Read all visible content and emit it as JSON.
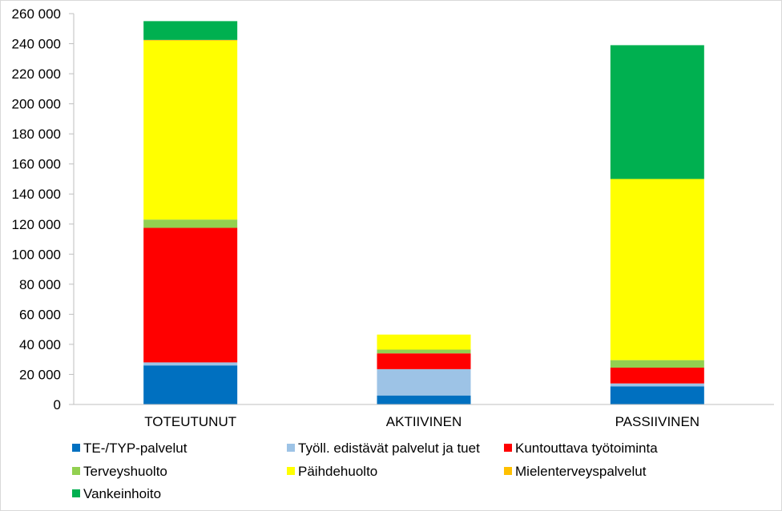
{
  "chart_data": {
    "type": "bar",
    "stacked": true,
    "categories": [
      "TOTEUTUNUT",
      "AKTIIVINEN",
      "PASSIIVINEN"
    ],
    "series": [
      {
        "name": "TE-/TYP-palvelut",
        "color": "#0070C0",
        "values": [
          26000,
          6000,
          12000
        ]
      },
      {
        "name": "Työll. edistävät palvelut ja tuet",
        "color": "#9DC3E6",
        "values": [
          2000,
          17500,
          2000
        ]
      },
      {
        "name": "Kuntouttava työtoiminta",
        "color": "#FF0000",
        "values": [
          89500,
          10500,
          10500
        ]
      },
      {
        "name": "Terveyshuolto",
        "color": "#92D050",
        "values": [
          5500,
          2500,
          5000
        ]
      },
      {
        "name": "Päihdehuolto",
        "color": "#FFFF00",
        "values": [
          119000,
          10000,
          120500
        ]
      },
      {
        "name": "Mielenterveyspalvelut",
        "color": "#FFC000",
        "values": [
          500,
          0,
          0
        ]
      },
      {
        "name": "Vankeinhoito",
        "color": "#00B050",
        "values": [
          12500,
          0,
          89000
        ]
      }
    ],
    "ylim": [
      0,
      260000
    ],
    "yticks": [
      "0",
      "20 000",
      "40 000",
      "60 000",
      "80 000",
      "100 000",
      "120 000",
      "140 000",
      "160 000",
      "180 000",
      "200 000",
      "220 000",
      "240 000",
      "260 000"
    ],
    "grid": false,
    "legend_position": "bottom"
  }
}
